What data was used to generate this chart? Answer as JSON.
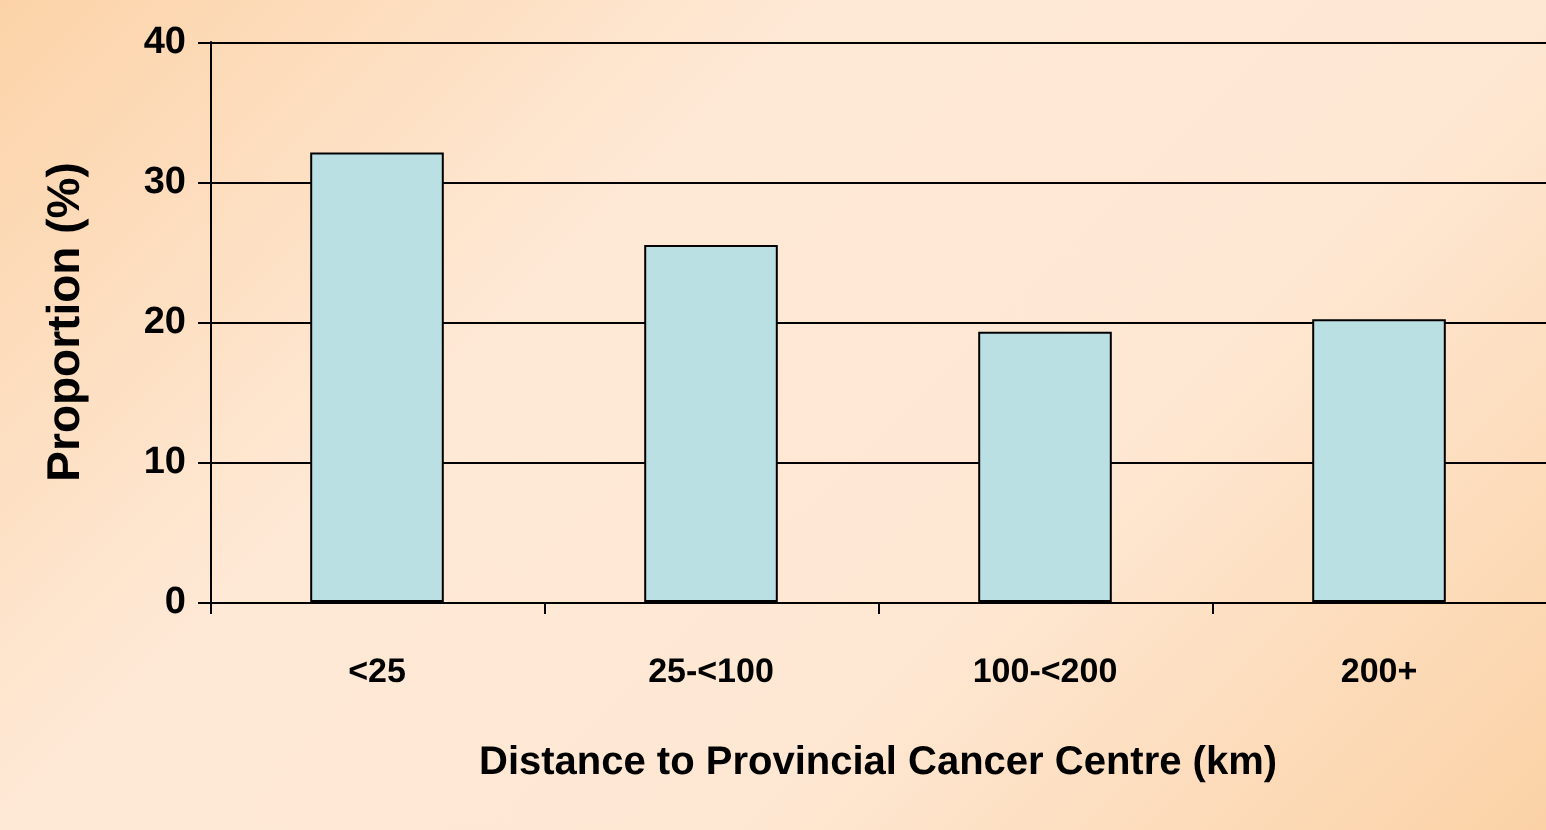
{
  "chart_data": {
    "type": "bar",
    "xlabel": "Distance to Provincial Cancer Centre (km)",
    "ylabel": "Proportion (%)",
    "categories": [
      "<25",
      "25-<100",
      "100-<200",
      "200+"
    ],
    "values": [
      32.1,
      25.5,
      19.3,
      20.2
    ],
    "color": "#bbe0e3",
    "ylim": [
      0,
      40
    ],
    "yticks": [
      0,
      10,
      20,
      30,
      40
    ],
    "grid": "y"
  }
}
